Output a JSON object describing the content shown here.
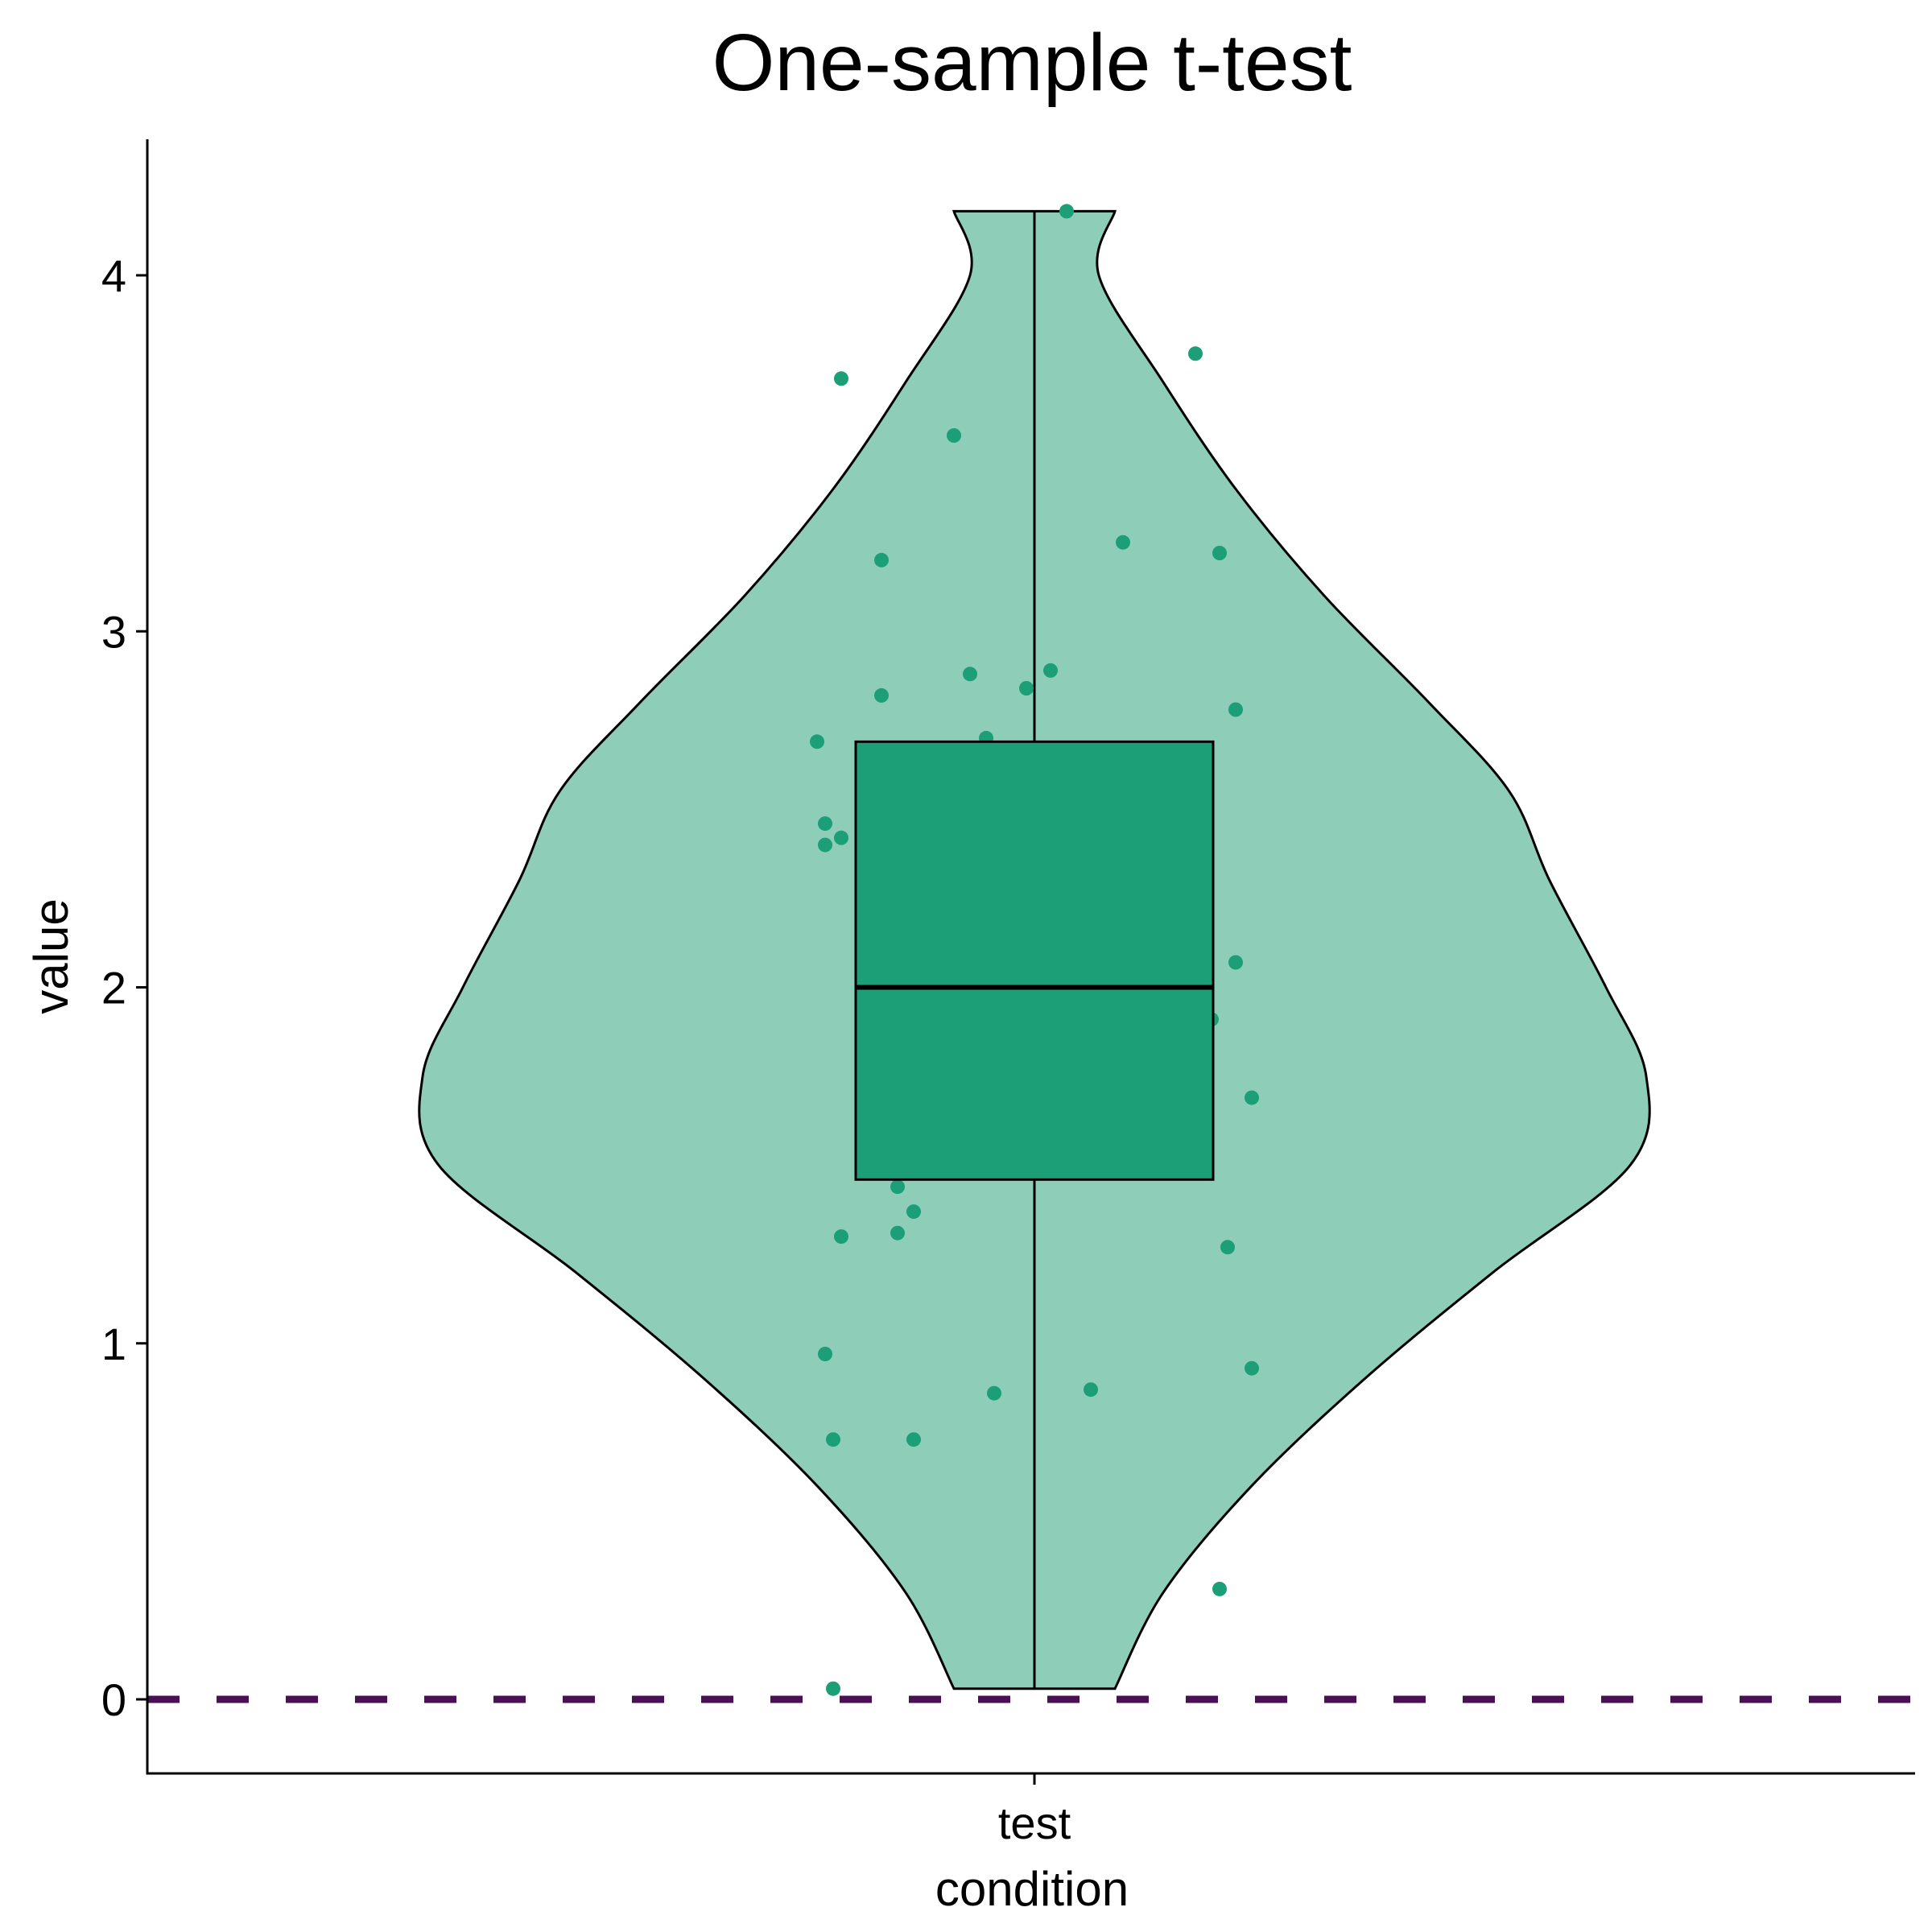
{
  "chart_data": {
    "type": "violin",
    "title": "One-sample t-test",
    "xlabel": "condition",
    "ylabel": "value",
    "categories": [
      "test"
    ],
    "ylim": [
      -0.21,
      4.38
    ],
    "yticks": [
      0,
      1,
      2,
      3,
      4
    ],
    "grid": false,
    "legend": "none",
    "reference_line": {
      "y": 0,
      "style": "dashed",
      "color": "#4B0F55"
    },
    "colors": {
      "violin_fill": "#8ECEB9",
      "box_fill": "#1C9E77",
      "points": "#1C9E77",
      "outline": "#000000"
    },
    "box": {
      "min": 0.03,
      "q1": 1.46,
      "median": 2.0,
      "q3": 2.69,
      "max": 4.18
    },
    "violin_density": [
      [
        0.03,
        0.1
      ],
      [
        0.3,
        0.16
      ],
      [
        0.6,
        0.27
      ],
      [
        0.9,
        0.41
      ],
      [
        1.2,
        0.57
      ],
      [
        1.5,
        0.74
      ],
      [
        1.75,
        0.76
      ],
      [
        2.0,
        0.71
      ],
      [
        2.3,
        0.64
      ],
      [
        2.55,
        0.59
      ],
      [
        2.8,
        0.49
      ],
      [
        3.1,
        0.36
      ],
      [
        3.4,
        0.25
      ],
      [
        3.7,
        0.16
      ],
      [
        4.0,
        0.08
      ],
      [
        4.18,
        0.1
      ]
    ],
    "points": [
      {
        "x": 0.04,
        "y": 4.18
      },
      {
        "x": -0.24,
        "y": 3.71
      },
      {
        "x": 0.2,
        "y": 3.78
      },
      {
        "x": -0.1,
        "y": 3.55
      },
      {
        "x": -0.19,
        "y": 3.2
      },
      {
        "x": 0.11,
        "y": 3.25
      },
      {
        "x": 0.23,
        "y": 3.22
      },
      {
        "x": -0.19,
        "y": 2.82
      },
      {
        "x": -0.08,
        "y": 2.88
      },
      {
        "x": -0.01,
        "y": 2.84
      },
      {
        "x": 0.02,
        "y": 2.89
      },
      {
        "x": 0.25,
        "y": 2.78
      },
      {
        "x": -0.27,
        "y": 2.69
      },
      {
        "x": -0.06,
        "y": 2.7
      },
      {
        "x": -0.26,
        "y": 2.46
      },
      {
        "x": -0.26,
        "y": 2.4
      },
      {
        "x": -0.24,
        "y": 2.42
      },
      {
        "x": -0.21,
        "y": 2.36
      },
      {
        "x": 0.25,
        "y": 2.07
      },
      {
        "x": 0.22,
        "y": 1.91
      },
      {
        "x": -0.21,
        "y": 1.78
      },
      {
        "x": 0.27,
        "y": 1.69
      },
      {
        "x": -0.17,
        "y": 1.44
      },
      {
        "x": -0.15,
        "y": 1.37
      },
      {
        "x": -0.24,
        "y": 1.3
      },
      {
        "x": -0.17,
        "y": 1.31
      },
      {
        "x": 0.24,
        "y": 1.27
      },
      {
        "x": -0.26,
        "y": 0.97
      },
      {
        "x": -0.05,
        "y": 0.86
      },
      {
        "x": 0.07,
        "y": 0.87
      },
      {
        "x": 0.27,
        "y": 0.93
      },
      {
        "x": -0.25,
        "y": 0.73
      },
      {
        "x": -0.15,
        "y": 0.73
      },
      {
        "x": 0.23,
        "y": 0.31
      },
      {
        "x": -0.25,
        "y": 0.03
      }
    ]
  }
}
